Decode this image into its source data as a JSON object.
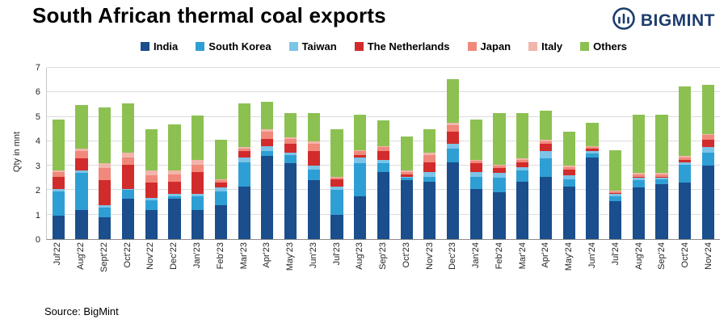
{
  "header": {
    "title": "South African thermal coal exports",
    "brand": "BIGMINT"
  },
  "chart_data": {
    "type": "bar",
    "stacked": true,
    "title": "South African thermal coal exports",
    "xlabel": "",
    "ylabel": "Qty in mnt",
    "ylim": [
      0,
      7
    ],
    "yticks": [
      0,
      1,
      2,
      3,
      4,
      5,
      6,
      7
    ],
    "grid": true,
    "legend_position": "top",
    "categories": [
      "Jul'22",
      "Aug'22",
      "Sept'22",
      "Oct'22",
      "Nov'22",
      "Dec'22",
      "Jan'23",
      "Feb'23",
      "Mar'23",
      "Apr'23",
      "May'23",
      "Jun'23",
      "Jul'23",
      "Aug'23",
      "Sep'23",
      "Oct'23",
      "Nov'23",
      "Dec'23",
      "Jan'24",
      "Feb'24",
      "Mar'24",
      "Apr'24",
      "May'24",
      "Jun'24",
      "Jul'24",
      "Aug'24",
      "Sep'24",
      "Oct'24",
      "Nov'24"
    ],
    "series": [
      {
        "name": "India",
        "color": "#1a4e8c",
        "values": [
          0.95,
          1.2,
          0.9,
          1.65,
          1.2,
          1.65,
          1.2,
          1.4,
          2.15,
          3.4,
          3.1,
          2.4,
          1.0,
          1.75,
          2.75,
          2.4,
          2.35,
          3.15,
          2.05,
          1.9,
          2.35,
          2.55,
          2.15,
          3.35,
          1.55,
          2.1,
          2.25,
          2.3,
          3.0
        ]
      },
      {
        "name": "South Korea",
        "color": "#2e9fd4",
        "values": [
          1.0,
          1.5,
          0.4,
          0.35,
          0.4,
          0.1,
          0.55,
          0.55,
          1.0,
          0.2,
          0.35,
          0.45,
          1.0,
          1.35,
          0.35,
          0.1,
          0.2,
          0.55,
          0.5,
          0.6,
          0.45,
          0.75,
          0.3,
          0.15,
          0.2,
          0.3,
          0.2,
          0.75,
          0.55
        ]
      },
      {
        "name": "Taiwan",
        "color": "#7cc4e8",
        "values": [
          0.1,
          0.1,
          0.1,
          0.05,
          0.1,
          0.1,
          0.1,
          0.15,
          0.2,
          0.2,
          0.1,
          0.15,
          0.15,
          0.25,
          0.15,
          0.05,
          0.2,
          0.2,
          0.2,
          0.2,
          0.15,
          0.3,
          0.15,
          0.1,
          0.1,
          0.1,
          0.05,
          0.1,
          0.2
        ]
      },
      {
        "name": "The Netherlands",
        "color": "#d22b2b",
        "values": [
          0.5,
          0.5,
          1.0,
          1.0,
          0.6,
          0.5,
          0.9,
          0.2,
          0.25,
          0.3,
          0.35,
          0.6,
          0.3,
          0.1,
          0.35,
          0.1,
          0.4,
          0.5,
          0.35,
          0.2,
          0.2,
          0.3,
          0.25,
          0.1,
          0.05,
          0.05,
          0.05,
          0.1,
          0.3
        ]
      },
      {
        "name": "Japan",
        "color": "#f0897b",
        "values": [
          0.2,
          0.3,
          0.5,
          0.3,
          0.3,
          0.3,
          0.3,
          0.1,
          0.1,
          0.3,
          0.2,
          0.3,
          0.05,
          0.15,
          0.15,
          0.1,
          0.3,
          0.25,
          0.1,
          0.1,
          0.1,
          0.1,
          0.1,
          0.05,
          0.05,
          0.1,
          0.1,
          0.1,
          0.2
        ]
      },
      {
        "name": "Italy",
        "color": "#f2b5ab",
        "values": [
          0.05,
          0.1,
          0.2,
          0.2,
          0.2,
          0.15,
          0.2,
          0.05,
          0.05,
          0.1,
          0.05,
          0.1,
          0.05,
          0.05,
          0.05,
          0.05,
          0.1,
          0.1,
          0.05,
          0.05,
          0.05,
          0.05,
          0.05,
          0.05,
          0.05,
          0.05,
          0.05,
          0.05,
          0.05
        ]
      },
      {
        "name": "Others",
        "color": "#8cc152",
        "values": [
          2.1,
          1.8,
          2.3,
          2.0,
          1.7,
          1.9,
          1.8,
          1.6,
          1.8,
          1.1,
          1.0,
          1.15,
          1.95,
          1.45,
          1.05,
          1.4,
          0.95,
          1.8,
          1.65,
          2.1,
          1.85,
          1.2,
          1.4,
          0.95,
          1.65,
          2.4,
          2.4,
          2.85,
          2.0
        ]
      }
    ]
  },
  "footer": {
    "source": "Source: BigMint"
  }
}
